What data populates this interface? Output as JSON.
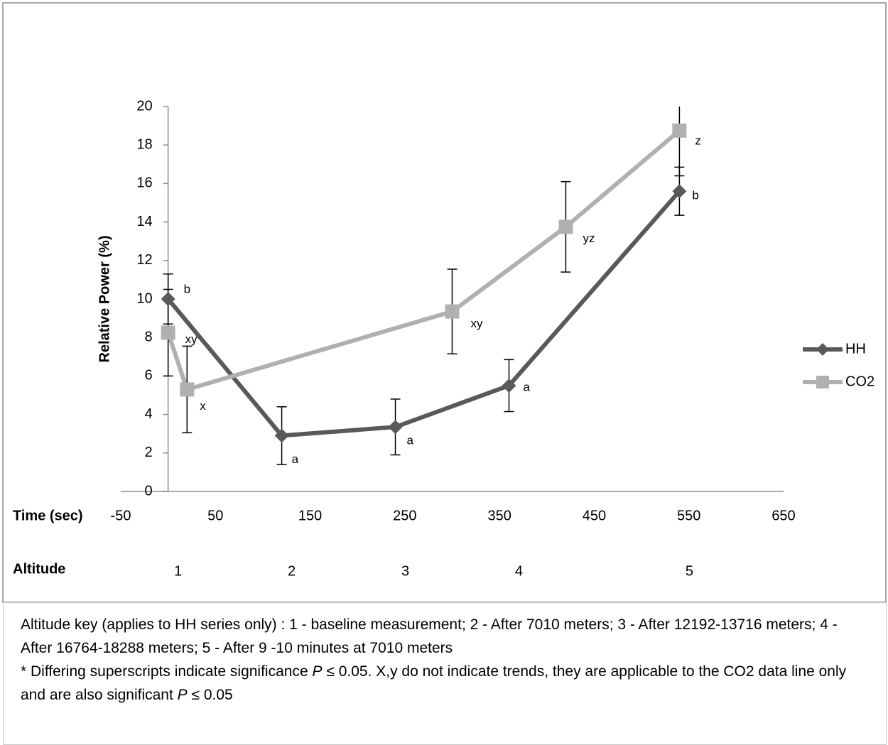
{
  "chart_data": {
    "type": "line",
    "y_label": "Relative Power (%)",
    "x_label": "Time (sec)",
    "row_label": "Altitude",
    "altitude_labels": [
      "1",
      "2",
      "3",
      "4",
      "5"
    ],
    "xlim": [
      -50,
      650
    ],
    "xticks": [
      -50,
      50,
      150,
      250,
      350,
      450,
      550,
      650
    ],
    "ylim": [
      0,
      20
    ],
    "yticks": [
      0,
      2,
      4,
      6,
      8,
      10,
      12,
      14,
      16,
      18,
      20
    ],
    "series": [
      {
        "name": "HH",
        "color": "#595959",
        "marker": "diamond",
        "x": [
          0,
          120,
          240,
          360,
          540
        ],
        "values": [
          10,
          2.9,
          3.35,
          5.5,
          15.6
        ],
        "errors": [
          1.3,
          1.5,
          1.45,
          1.35,
          1.25
        ],
        "point_labels": [
          "b",
          "a",
          "a",
          "a",
          "b"
        ]
      },
      {
        "name": "CO2",
        "color": "#b0b0b0",
        "marker": "square",
        "x": [
          0,
          20,
          300,
          420,
          540
        ],
        "values": [
          8.25,
          5.3,
          9.35,
          13.75,
          18.75
        ],
        "errors": [
          2.25,
          2.25,
          2.2,
          2.35,
          2.35
        ],
        "point_labels": [
          "xy",
          "x",
          "xy",
          "yz",
          "z"
        ]
      }
    ]
  },
  "caption": [
    "Altitude key (applies to HH series only) : 1 - baseline measurement; 2 - After 7010 meters; 3 - After 12192-13716 meters; 4 - After 16764-18288 meters; 5 - After 9 -10 minutes at 7010 meters",
    "* Differing superscripts indicate significance ",
    "P",
    " ≤ 0.05. X,y do not indicate trends, they are applicable to the CO2 data line only and are also significant ",
    "P",
    " ≤ 0.05"
  ]
}
